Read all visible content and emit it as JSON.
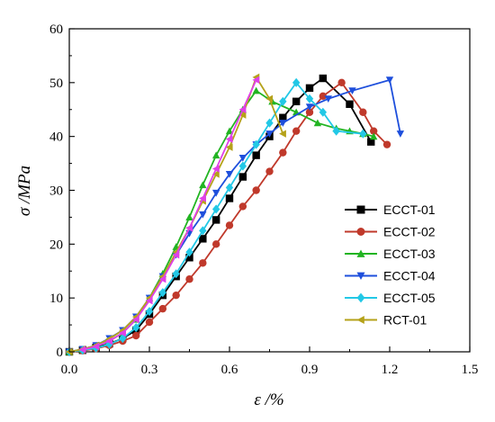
{
  "chart_data": {
    "type": "line",
    "xlabel": "ε /%",
    "ylabel": "σ /MPa",
    "xlim": [
      0,
      1.5
    ],
    "ylim": [
      0,
      60
    ],
    "xticks": [
      0.0,
      0.3,
      0.6,
      0.9,
      1.2,
      1.5
    ],
    "yticks": [
      0,
      10,
      20,
      30,
      40,
      50,
      60
    ],
    "xtick_labels": [
      "0.0",
      "0.3",
      "0.6",
      "0.9",
      "1.2",
      "1.5"
    ],
    "ytick_labels": [
      "0",
      "10",
      "20",
      "30",
      "40",
      "50",
      "60"
    ],
    "grid": false,
    "legend_position": "right",
    "series": [
      {
        "name": "ECCT-01",
        "color": "#000000",
        "marker": "square",
        "x": [
          0,
          0.05,
          0.1,
          0.15,
          0.2,
          0.25,
          0.3,
          0.35,
          0.4,
          0.45,
          0.5,
          0.55,
          0.6,
          0.65,
          0.7,
          0.75,
          0.8,
          0.85,
          0.9,
          0.95,
          1.05,
          1.13
        ],
        "y": [
          0,
          0.3,
          0.8,
          1.5,
          2.5,
          4.0,
          7.0,
          10.5,
          14.0,
          17.5,
          21.0,
          24.5,
          28.5,
          32.5,
          36.5,
          40.0,
          43.5,
          46.5,
          49.0,
          50.8,
          46.0,
          39.0
        ]
      },
      {
        "name": "ECCT-02",
        "color": "#c0392b",
        "marker": "circle",
        "x": [
          0,
          0.05,
          0.1,
          0.15,
          0.2,
          0.25,
          0.3,
          0.35,
          0.4,
          0.45,
          0.5,
          0.55,
          0.6,
          0.65,
          0.7,
          0.75,
          0.8,
          0.85,
          0.9,
          0.95,
          1.02,
          1.1,
          1.14,
          1.19
        ],
        "y": [
          0,
          0.2,
          0.6,
          1.2,
          2.0,
          3.0,
          5.5,
          8.0,
          10.5,
          13.5,
          16.5,
          20.0,
          23.5,
          27.0,
          30.0,
          33.5,
          37.0,
          41.0,
          44.5,
          47.5,
          50.0,
          44.5,
          41.0,
          38.5
        ]
      },
      {
        "name": "ECCT-03",
        "color": "#22b422",
        "marker": "triangle-up",
        "x": [
          0,
          0.05,
          0.1,
          0.15,
          0.2,
          0.25,
          0.3,
          0.35,
          0.4,
          0.45,
          0.5,
          0.55,
          0.6,
          0.65,
          0.7,
          0.76,
          0.85,
          0.93,
          1.0,
          1.05,
          1.1,
          1.14
        ],
        "y": [
          0,
          0.4,
          1.0,
          2.0,
          3.5,
          6.0,
          10.0,
          14.5,
          19.5,
          25.0,
          31.0,
          36.5,
          41.0,
          45.0,
          48.5,
          46.5,
          44.5,
          42.5,
          41.5,
          41.0,
          40.5,
          40.0
        ]
      },
      {
        "name": "ECCT-04",
        "color": "#1e4fdc",
        "marker": "triangle-down",
        "x": [
          0,
          0.05,
          0.1,
          0.15,
          0.2,
          0.25,
          0.3,
          0.35,
          0.4,
          0.45,
          0.5,
          0.55,
          0.6,
          0.65,
          0.7,
          0.75,
          0.8,
          0.9,
          0.97,
          1.06,
          1.2,
          1.24
        ],
        "y": [
          0,
          0.5,
          1.2,
          2.5,
          4.0,
          6.5,
          10.0,
          14.0,
          18.0,
          22.0,
          25.5,
          29.5,
          33.0,
          36.0,
          38.5,
          40.5,
          42.5,
          45.5,
          47.0,
          48.5,
          50.5,
          40.5
        ]
      },
      {
        "name": "ECCT-05",
        "color": "#22c8e6",
        "marker": "diamond",
        "x": [
          0,
          0.05,
          0.1,
          0.15,
          0.2,
          0.25,
          0.3,
          0.35,
          0.4,
          0.45,
          0.5,
          0.55,
          0.6,
          0.65,
          0.7,
          0.75,
          0.8,
          0.85,
          0.9,
          0.95,
          1.0,
          1.1
        ],
        "y": [
          0,
          0.3,
          0.7,
          1.4,
          2.5,
          4.5,
          7.5,
          11.0,
          14.5,
          18.5,
          22.5,
          26.5,
          30.5,
          34.5,
          38.5,
          42.5,
          46.5,
          50.0,
          47.0,
          44.5,
          41.0,
          40.5
        ]
      },
      {
        "name": "RCT-01",
        "color": "#b5a21a",
        "marker": "triangle-left",
        "x": [
          0,
          0.05,
          0.1,
          0.15,
          0.2,
          0.25,
          0.3,
          0.35,
          0.4,
          0.45,
          0.5,
          0.55,
          0.6,
          0.65,
          0.7,
          0.75,
          0.8
        ],
        "y": [
          0,
          0.5,
          1.2,
          2.4,
          4.0,
          6.5,
          10.0,
          14.0,
          18.5,
          23.0,
          28.0,
          33.0,
          38.0,
          44.0,
          51.0,
          47.0,
          40.5
        ]
      }
    ]
  },
  "overlay_series": [
    {
      "name": "magenta",
      "color": "#e040e8",
      "marker": "triangle-left",
      "x": [
        0.05,
        0.1,
        0.15,
        0.2,
        0.25,
        0.3,
        0.35,
        0.4,
        0.45,
        0.5,
        0.55,
        0.6,
        0.65,
        0.7
      ],
      "y": [
        0.4,
        1.0,
        2.0,
        3.5,
        6.0,
        9.5,
        13.5,
        18.0,
        23.0,
        28.5,
        34.0,
        39.5,
        45.0,
        50.5
      ]
    }
  ]
}
